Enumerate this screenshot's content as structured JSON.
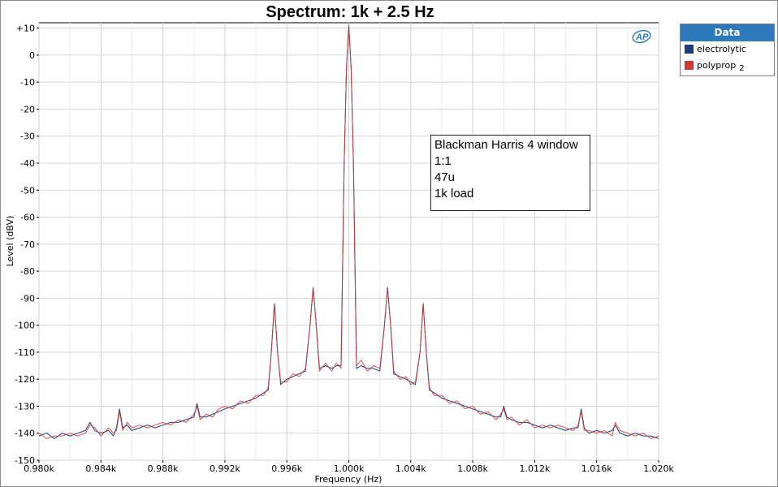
{
  "chart_data": {
    "type": "line",
    "title": "Spectrum: 1k + 2.5 Hz",
    "xlabel": "Frequency (Hz)",
    "ylabel": "Level (dBV)",
    "xlim": [
      980,
      1020
    ],
    "ylim": [
      -150,
      12
    ],
    "grid": true,
    "legend_position": "right-outside",
    "legend_title": "Data",
    "x_ticks": [
      980,
      984,
      988,
      992,
      996,
      1000,
      1004,
      1008,
      1012,
      1016,
      1020
    ],
    "x_tick_labels": [
      "0.980k",
      "0.984k",
      "0.988k",
      "0.992k",
      "0.996k",
      "1.000k",
      "1.004k",
      "1.008k",
      "1.012k",
      "1.016k",
      "1.020k"
    ],
    "y_ticks": [
      10,
      0,
      -10,
      -20,
      -30,
      -40,
      -50,
      -60,
      -70,
      -80,
      -90,
      -100,
      -110,
      -120,
      -130,
      -140,
      -150
    ],
    "y_tick_labels": [
      "+10",
      "0",
      "-10",
      "-20",
      "-30",
      "-40",
      "-50",
      "-60",
      "-70",
      "-80",
      "-90",
      "-100",
      "-110",
      "-120",
      "-130",
      "-140",
      "-150"
    ],
    "annotation": [
      "Blackman Harris 4 window",
      "1:1",
      "47u",
      "1k load"
    ],
    "series": [
      {
        "name": "electrolytic",
        "suffix": "",
        "color": "#1f3a7a",
        "points": [
          [
            980.0,
            -141
          ],
          [
            980.5,
            -140
          ],
          [
            981.0,
            -142
          ],
          [
            981.5,
            -140
          ],
          [
            982.0,
            -141
          ],
          [
            982.5,
            -140
          ],
          [
            983.0,
            -139
          ],
          [
            983.3,
            -136
          ],
          [
            983.6,
            -139
          ],
          [
            984.0,
            -140
          ],
          [
            984.5,
            -139
          ],
          [
            984.8,
            -141
          ],
          [
            985.0,
            -138
          ],
          [
            985.2,
            -131
          ],
          [
            985.4,
            -138
          ],
          [
            985.7,
            -137
          ],
          [
            986.0,
            -139
          ],
          [
            986.5,
            -138
          ],
          [
            987.0,
            -137
          ],
          [
            987.5,
            -138
          ],
          [
            988.0,
            -137
          ],
          [
            988.5,
            -136
          ],
          [
            989.0,
            -136
          ],
          [
            989.5,
            -135
          ],
          [
            990.0,
            -134
          ],
          [
            990.2,
            -129
          ],
          [
            990.4,
            -134
          ],
          [
            990.8,
            -134
          ],
          [
            991.2,
            -133
          ],
          [
            991.6,
            -132
          ],
          [
            992.0,
            -131
          ],
          [
            992.5,
            -130
          ],
          [
            993.0,
            -129
          ],
          [
            993.5,
            -128
          ],
          [
            994.0,
            -127
          ],
          [
            994.5,
            -125
          ],
          [
            994.8,
            -124
          ],
          [
            995.0,
            -110
          ],
          [
            995.2,
            -92
          ],
          [
            995.4,
            -110
          ],
          [
            995.6,
            -122
          ],
          [
            996.0,
            -120
          ],
          [
            996.4,
            -119
          ],
          [
            996.8,
            -118
          ],
          [
            997.2,
            -117
          ],
          [
            997.5,
            -100
          ],
          [
            997.7,
            -86
          ],
          [
            997.9,
            -100
          ],
          [
            998.1,
            -116
          ],
          [
            998.5,
            -115
          ],
          [
            998.9,
            -116
          ],
          [
            999.2,
            -115
          ],
          [
            999.5,
            -115
          ],
          [
            999.7,
            -40
          ],
          [
            999.85,
            -5
          ],
          [
            1000.0,
            11
          ],
          [
            1000.15,
            -5
          ],
          [
            1000.3,
            -40
          ],
          [
            1000.5,
            -116
          ],
          [
            1000.8,
            -115
          ],
          [
            1001.2,
            -116
          ],
          [
            1001.6,
            -116
          ],
          [
            1002.0,
            -117
          ],
          [
            1002.3,
            -100
          ],
          [
            1002.5,
            -86
          ],
          [
            1002.7,
            -100
          ],
          [
            1002.9,
            -118
          ],
          [
            1003.3,
            -119
          ],
          [
            1003.7,
            -120
          ],
          [
            1004.0,
            -121
          ],
          [
            1004.3,
            -122
          ],
          [
            1004.6,
            -110
          ],
          [
            1004.8,
            -92
          ],
          [
            1005.0,
            -110
          ],
          [
            1005.2,
            -124
          ],
          [
            1005.5,
            -125
          ],
          [
            1006.0,
            -127
          ],
          [
            1006.5,
            -128
          ],
          [
            1007.0,
            -129
          ],
          [
            1007.5,
            -130
          ],
          [
            1008.0,
            -131
          ],
          [
            1008.5,
            -132
          ],
          [
            1009.0,
            -133
          ],
          [
            1009.5,
            -134
          ],
          [
            1009.8,
            -134
          ],
          [
            1010.0,
            -130
          ],
          [
            1010.2,
            -134
          ],
          [
            1010.5,
            -135
          ],
          [
            1011.0,
            -136
          ],
          [
            1011.5,
            -136
          ],
          [
            1012.0,
            -137
          ],
          [
            1012.5,
            -138
          ],
          [
            1013.0,
            -137
          ],
          [
            1013.5,
            -138
          ],
          [
            1014.0,
            -139
          ],
          [
            1014.5,
            -138
          ],
          [
            1014.8,
            -138
          ],
          [
            1015.0,
            -131
          ],
          [
            1015.2,
            -138
          ],
          [
            1015.5,
            -140
          ],
          [
            1016.0,
            -139
          ],
          [
            1016.5,
            -140
          ],
          [
            1017.0,
            -139
          ],
          [
            1017.2,
            -137
          ],
          [
            1017.5,
            -140
          ],
          [
            1018.0,
            -141
          ],
          [
            1018.5,
            -140
          ],
          [
            1019.0,
            -141
          ],
          [
            1019.5,
            -141
          ],
          [
            1020.0,
            -142
          ]
        ]
      },
      {
        "name": "polyprop",
        "suffix": "2",
        "color": "#d03a34",
        "points": [
          [
            980.0,
            -140
          ],
          [
            980.5,
            -142
          ],
          [
            981.0,
            -141
          ],
          [
            981.5,
            -141
          ],
          [
            982.0,
            -140
          ],
          [
            982.5,
            -141
          ],
          [
            983.0,
            -140
          ],
          [
            983.3,
            -137
          ],
          [
            983.6,
            -138
          ],
          [
            984.0,
            -141
          ],
          [
            984.5,
            -138
          ],
          [
            984.8,
            -140
          ],
          [
            985.0,
            -139
          ],
          [
            985.2,
            -132
          ],
          [
            985.4,
            -139
          ],
          [
            985.7,
            -136
          ],
          [
            986.0,
            -138
          ],
          [
            986.5,
            -137
          ],
          [
            987.0,
            -138
          ],
          [
            987.5,
            -137
          ],
          [
            988.0,
            -136
          ],
          [
            988.5,
            -137
          ],
          [
            989.0,
            -135
          ],
          [
            989.5,
            -136
          ],
          [
            990.0,
            -133
          ],
          [
            990.2,
            -130
          ],
          [
            990.4,
            -135
          ],
          [
            990.8,
            -133
          ],
          [
            991.2,
            -134
          ],
          [
            991.6,
            -131
          ],
          [
            992.0,
            -130
          ],
          [
            992.5,
            -131
          ],
          [
            993.0,
            -128
          ],
          [
            993.5,
            -129
          ],
          [
            994.0,
            -126
          ],
          [
            994.5,
            -126
          ],
          [
            994.8,
            -123
          ],
          [
            995.0,
            -110
          ],
          [
            995.2,
            -92
          ],
          [
            995.4,
            -110
          ],
          [
            995.6,
            -121
          ],
          [
            996.0,
            -121
          ],
          [
            996.4,
            -118
          ],
          [
            996.8,
            -119
          ],
          [
            997.2,
            -116
          ],
          [
            997.5,
            -100
          ],
          [
            997.7,
            -86
          ],
          [
            997.9,
            -100
          ],
          [
            998.1,
            -117
          ],
          [
            998.5,
            -114
          ],
          [
            998.9,
            -117
          ],
          [
            999.2,
            -114
          ],
          [
            999.5,
            -116
          ],
          [
            999.7,
            -40
          ],
          [
            999.85,
            -5
          ],
          [
            1000.0,
            11
          ],
          [
            1000.15,
            -5
          ],
          [
            1000.3,
            -40
          ],
          [
            1000.5,
            -115
          ],
          [
            1000.8,
            -113
          ],
          [
            1001.2,
            -117
          ],
          [
            1001.6,
            -115
          ],
          [
            1002.0,
            -116
          ],
          [
            1002.3,
            -100
          ],
          [
            1002.5,
            -86
          ],
          [
            1002.7,
            -100
          ],
          [
            1002.9,
            -117
          ],
          [
            1003.3,
            -120
          ],
          [
            1003.7,
            -119
          ],
          [
            1004.0,
            -122
          ],
          [
            1004.3,
            -121
          ],
          [
            1004.6,
            -110
          ],
          [
            1004.8,
            -92
          ],
          [
            1005.0,
            -110
          ],
          [
            1005.2,
            -123
          ],
          [
            1005.5,
            -126
          ],
          [
            1006.0,
            -126
          ],
          [
            1006.5,
            -129
          ],
          [
            1007.0,
            -128
          ],
          [
            1007.5,
            -131
          ],
          [
            1008.0,
            -130
          ],
          [
            1008.5,
            -133
          ],
          [
            1009.0,
            -132
          ],
          [
            1009.5,
            -135
          ],
          [
            1009.8,
            -133
          ],
          [
            1010.0,
            -131
          ],
          [
            1010.2,
            -135
          ],
          [
            1010.5,
            -134
          ],
          [
            1011.0,
            -137
          ],
          [
            1011.5,
            -135
          ],
          [
            1012.0,
            -138
          ],
          [
            1012.5,
            -137
          ],
          [
            1013.0,
            -138
          ],
          [
            1013.5,
            -137
          ],
          [
            1014.0,
            -138
          ],
          [
            1014.5,
            -139
          ],
          [
            1014.8,
            -137
          ],
          [
            1015.0,
            -132
          ],
          [
            1015.2,
            -139
          ],
          [
            1015.5,
            -139
          ],
          [
            1016.0,
            -140
          ],
          [
            1016.5,
            -139
          ],
          [
            1017.0,
            -141
          ],
          [
            1017.2,
            -136
          ],
          [
            1017.5,
            -139
          ],
          [
            1018.0,
            -140
          ],
          [
            1018.5,
            -141
          ],
          [
            1019.0,
            -140
          ],
          [
            1019.5,
            -142
          ],
          [
            1020.0,
            -141
          ]
        ]
      }
    ]
  }
}
